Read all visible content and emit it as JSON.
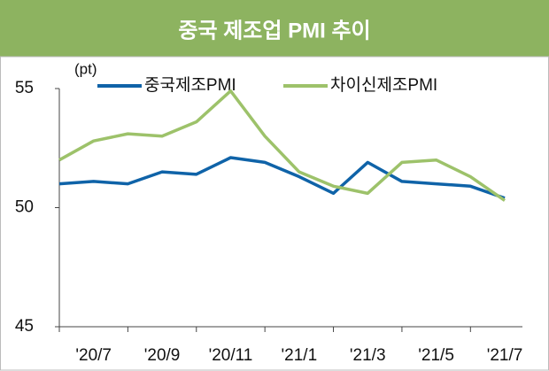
{
  "chart_data": {
    "type": "line",
    "title": "중국 제조업 PMI 추이",
    "y_unit": "(pt)",
    "categories": [
      null,
      "'20/7",
      null,
      "'20/9",
      null,
      "'20/11",
      null,
      "'21/1",
      null,
      "'21/3",
      null,
      "'21/5",
      null,
      "'21/7"
    ],
    "series": [
      {
        "name": "중국제조PMI",
        "color": "#0f63a8",
        "values": [
          51.0,
          51.1,
          51.0,
          51.5,
          51.4,
          52.1,
          51.9,
          51.3,
          50.6,
          51.9,
          51.1,
          51.0,
          50.9,
          50.4
        ]
      },
      {
        "name": "차이신제조PMI",
        "color": "#9dc26a",
        "values": [
          52.0,
          52.8,
          53.1,
          53.0,
          53.6,
          54.9,
          53.0,
          51.5,
          50.9,
          50.6,
          51.9,
          52.0,
          51.3,
          50.3
        ]
      }
    ],
    "ylim": [
      45,
      55
    ],
    "yticks": [
      45,
      50,
      55
    ]
  }
}
